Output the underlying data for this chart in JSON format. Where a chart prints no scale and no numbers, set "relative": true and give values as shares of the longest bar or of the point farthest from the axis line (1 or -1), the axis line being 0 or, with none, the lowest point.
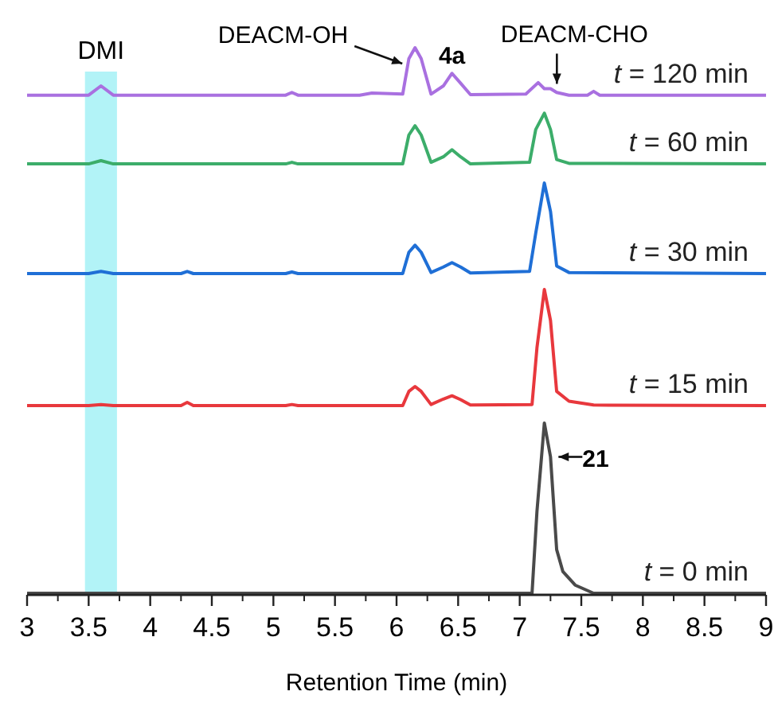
{
  "chart_data": {
    "type": "line",
    "relative": true,
    "xlabel": "Retention Time (min)",
    "xlim": [
      3,
      9
    ],
    "xticks": [
      3,
      3.5,
      4,
      4.5,
      5,
      5.5,
      6,
      6.5,
      7,
      7.5,
      8,
      8.5,
      9
    ],
    "legend": false,
    "grid": false,
    "marker": "none",
    "line_style": "solid",
    "series": [
      {
        "name": "t = 120 min",
        "color": "#a970e0",
        "x": [
          3,
          3.5,
          3.6,
          3.7,
          4,
          5.1,
          5.15,
          5.2,
          5.7,
          5.8,
          6.05,
          6.1,
          6.15,
          6.2,
          6.28,
          6.38,
          6.45,
          6.52,
          6.6,
          7.05,
          7.15,
          7.2,
          7.25,
          7.3,
          7.4,
          7.55,
          7.6,
          7.65,
          9
        ],
        "values": [
          0.913,
          0.913,
          0.93,
          0.913,
          0.913,
          0.913,
          0.918,
          0.913,
          0.913,
          0.917,
          0.915,
          0.98,
          1.0,
          0.98,
          0.915,
          0.93,
          0.953,
          0.935,
          0.914,
          0.915,
          0.936,
          0.925,
          0.925,
          0.918,
          0.913,
          0.913,
          0.92,
          0.913,
          0.913
        ]
      },
      {
        "name": "t = 60 min",
        "color": "#3cad6a",
        "x": [
          3,
          3.5,
          3.6,
          3.7,
          5.1,
          5.15,
          5.2,
          6.05,
          6.1,
          6.15,
          6.2,
          6.28,
          6.38,
          6.45,
          6.52,
          6.6,
          7.08,
          7.13,
          7.2,
          7.25,
          7.3,
          7.4,
          9
        ],
        "values": [
          0.787,
          0.787,
          0.793,
          0.787,
          0.787,
          0.79,
          0.787,
          0.787,
          0.84,
          0.857,
          0.84,
          0.79,
          0.8,
          0.813,
          0.8,
          0.787,
          0.79,
          0.85,
          0.88,
          0.85,
          0.795,
          0.788,
          0.787
        ]
      },
      {
        "name": "t = 30 min",
        "color": "#1f6fd6",
        "x": [
          3,
          3.5,
          3.6,
          3.7,
          4.25,
          4.3,
          4.35,
          5.1,
          5.15,
          5.2,
          6.05,
          6.1,
          6.15,
          6.2,
          6.28,
          6.38,
          6.45,
          6.52,
          6.6,
          7.08,
          7.13,
          7.2,
          7.25,
          7.3,
          7.4,
          9
        ],
        "values": [
          0.586,
          0.586,
          0.59,
          0.586,
          0.586,
          0.59,
          0.586,
          0.586,
          0.589,
          0.586,
          0.586,
          0.625,
          0.638,
          0.625,
          0.588,
          0.598,
          0.606,
          0.598,
          0.587,
          0.59,
          0.66,
          0.752,
          0.7,
          0.6,
          0.588,
          0.586
        ]
      },
      {
        "name": "t = 15 min",
        "color": "#e8383d",
        "x": [
          3,
          3.5,
          3.6,
          3.7,
          4.25,
          4.3,
          4.35,
          5.1,
          5.15,
          5.2,
          6.05,
          6.1,
          6.15,
          6.2,
          6.28,
          6.38,
          6.45,
          6.52,
          6.6,
          7.1,
          7.14,
          7.2,
          7.25,
          7.3,
          7.4,
          7.6,
          9
        ],
        "values": [
          0.344,
          0.344,
          0.346,
          0.344,
          0.344,
          0.35,
          0.344,
          0.344,
          0.346,
          0.344,
          0.344,
          0.37,
          0.379,
          0.37,
          0.346,
          0.356,
          0.362,
          0.355,
          0.345,
          0.346,
          0.45,
          0.557,
          0.5,
          0.37,
          0.352,
          0.345,
          0.344
        ]
      },
      {
        "name": "t = 0 min",
        "color": "#4a4a4a",
        "x": [
          3,
          7.1,
          7.14,
          7.2,
          7.25,
          7.3,
          7.35,
          7.45,
          7.6,
          9
        ],
        "values": [
          0,
          0,
          0.15,
          0.312,
          0.25,
          0.08,
          0.04,
          0.015,
          0,
          0
        ]
      }
    ],
    "bands": [
      {
        "axis": "x",
        "from": 3.47,
        "to": 3.73,
        "label": "DMI",
        "color": "#9ff0f5"
      }
    ],
    "annotations": [
      {
        "text": "DEACM-OH",
        "x": 6.15,
        "y": 1.0
      },
      {
        "text": "4a",
        "x": 6.45,
        "y": 0.953
      },
      {
        "text": "DEACM-CHO",
        "x": 7.25,
        "y": 0.925
      },
      {
        "text": "21",
        "x": 7.25,
        "y": 0.25
      }
    ]
  }
}
